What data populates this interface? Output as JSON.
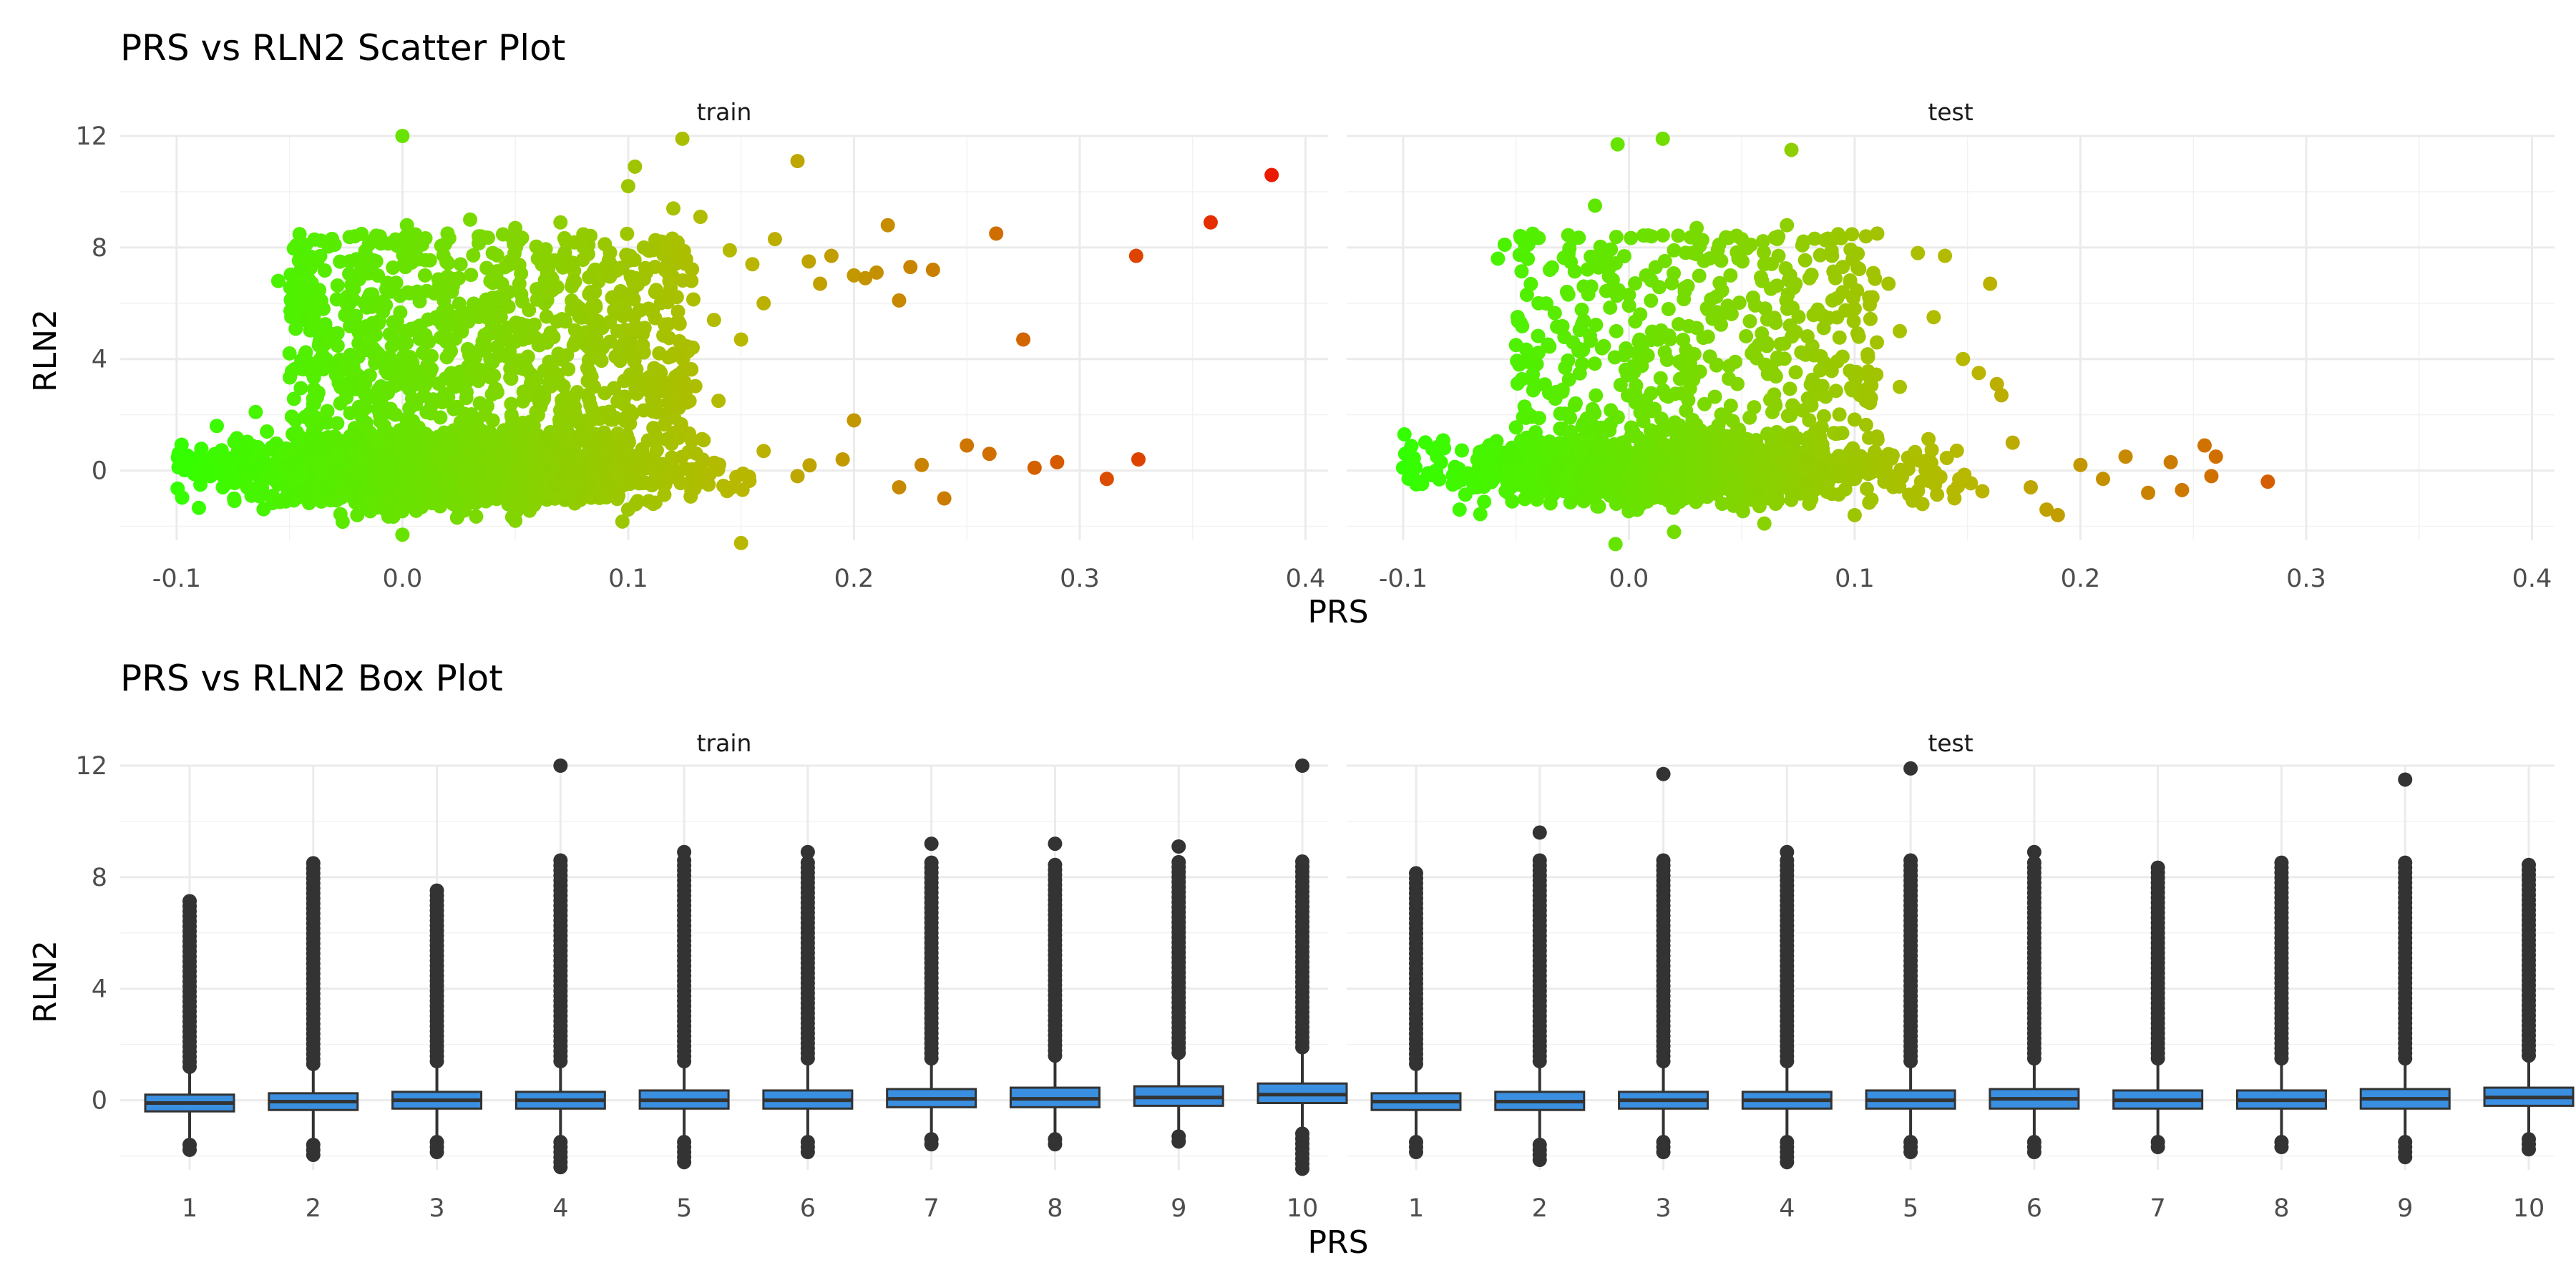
{
  "chart_data": [
    {
      "type": "scatter",
      "title": "PRS vs RLN2 Scatter Plot",
      "xlabel": "PRS",
      "ylabel": "RLN2",
      "facets": [
        "train",
        "test"
      ],
      "xlim": [
        -0.1,
        0.4
      ],
      "ylim": [
        -2.5,
        12
      ],
      "x_ticks": [
        "-0.1",
        "0.0",
        "0.1",
        "0.2",
        "0.3",
        "0.4"
      ],
      "y_ticks": [
        "0",
        "4",
        "8",
        "12"
      ],
      "color_scale": {
        "low": "#33ff00",
        "mid": "#b8b800",
        "high": "#ee1100",
        "range": [
          -0.1,
          0.4
        ]
      },
      "grid": true,
      "series": [
        {
          "facet": "train",
          "points": [
            [
              -0.097,
              0.1
            ],
            [
              -0.09,
              0.3
            ],
            [
              -0.085,
              -0.2
            ],
            [
              -0.08,
              0.5
            ],
            [
              -0.07,
              0.2
            ],
            [
              -0.065,
              2.1
            ],
            [
              -0.06,
              1.4
            ],
            [
              -0.055,
              6.8
            ],
            [
              -0.05,
              4.2
            ],
            [
              -0.045,
              7.2
            ],
            [
              -0.04,
              3.5
            ],
            [
              -0.035,
              5.8
            ],
            [
              -0.03,
              8.1
            ],
            [
              -0.025,
              2.8
            ],
            [
              -0.02,
              7.5
            ],
            [
              -0.015,
              6.2
            ],
            [
              -0.01,
              8.4
            ],
            [
              -0.005,
              4.9
            ],
            [
              0.0,
              12.0
            ],
            [
              0.002,
              8.8
            ],
            [
              0.005,
              3.1
            ],
            [
              0.01,
              7.0
            ],
            [
              0.015,
              5.5
            ],
            [
              0.02,
              8.5
            ],
            [
              0.025,
              6.9
            ],
            [
              0.03,
              9.0
            ],
            [
              0.035,
              4.4
            ],
            [
              0.04,
              7.8
            ],
            [
              0.045,
              6.1
            ],
            [
              0.05,
              8.7
            ],
            [
              0.055,
              5.2
            ],
            [
              0.06,
              7.6
            ],
            [
              0.065,
              3.9
            ],
            [
              0.07,
              8.9
            ],
            [
              0.075,
              6.6
            ],
            [
              0.08,
              8.2
            ],
            [
              0.085,
              4.6
            ],
            [
              0.09,
              7.3
            ],
            [
              0.095,
              5.9
            ],
            [
              0.1,
              10.2
            ],
            [
              0.103,
              10.9
            ],
            [
              0.108,
              7.1
            ],
            [
              0.112,
              6.4
            ],
            [
              0.116,
              8.0
            ],
            [
              0.12,
              9.4
            ],
            [
              0.124,
              11.9
            ],
            [
              0.128,
              6.8
            ],
            [
              0.132,
              9.1
            ],
            [
              0.138,
              5.4
            ],
            [
              0.145,
              7.9
            ],
            [
              0.15,
              4.7
            ],
            [
              0.155,
              7.4
            ],
            [
              0.16,
              6.0
            ],
            [
              0.165,
              8.3
            ],
            [
              0.175,
              11.1
            ],
            [
              0.18,
              7.5
            ],
            [
              0.185,
              6.7
            ],
            [
              0.19,
              7.7
            ],
            [
              0.2,
              7.0
            ],
            [
              0.205,
              6.9
            ],
            [
              0.21,
              7.1
            ],
            [
              0.215,
              8.8
            ],
            [
              0.22,
              6.1
            ],
            [
              0.225,
              7.3
            ],
            [
              0.235,
              7.2
            ],
            [
              0.263,
              8.5
            ],
            [
              0.275,
              4.7
            ],
            [
              0.325,
              7.7
            ],
            [
              0.358,
              8.9
            ],
            [
              0.385,
              10.6
            ],
            [
              -0.02,
              -1.6
            ],
            [
              0.0,
              -2.3
            ],
            [
              0.15,
              -2.6
            ],
            [
              0.05,
              -1.8
            ],
            [
              0.1,
              -1.4
            ],
            [
              0.12,
              1.9
            ],
            [
              0.14,
              2.5
            ],
            [
              0.2,
              1.8
            ],
            [
              0.23,
              0.2
            ],
            [
              0.26,
              0.6
            ],
            [
              0.28,
              0.1
            ],
            [
              0.29,
              0.3
            ],
            [
              0.312,
              -0.3
            ],
            [
              0.326,
              0.4
            ],
            [
              0.24,
              -1.0
            ],
            [
              0.25,
              0.9
            ],
            [
              0.22,
              -0.6
            ],
            [
              0.195,
              0.4
            ],
            [
              0.175,
              -0.2
            ],
            [
              0.16,
              0.7
            ]
          ]
        },
        {
          "facet": "test",
          "points": [
            [
              -0.1,
              0.1
            ],
            [
              -0.092,
              -0.4
            ],
            [
              -0.085,
              0.5
            ],
            [
              -0.075,
              -1.4
            ],
            [
              -0.06,
              0.7
            ],
            [
              -0.058,
              7.6
            ],
            [
              -0.055,
              8.1
            ],
            [
              -0.05,
              4.5
            ],
            [
              -0.045,
              3.9
            ],
            [
              -0.04,
              6.0
            ],
            [
              -0.035,
              7.2
            ],
            [
              -0.03,
              5.1
            ],
            [
              -0.025,
              8.3
            ],
            [
              -0.02,
              6.6
            ],
            [
              -0.015,
              9.5
            ],
            [
              -0.01,
              7.7
            ],
            [
              -0.005,
              11.7
            ],
            [
              0.0,
              6.3
            ],
            [
              0.005,
              5.6
            ],
            [
              0.01,
              8.4
            ],
            [
              0.015,
              11.9
            ],
            [
              0.02,
              7.9
            ],
            [
              0.025,
              6.5
            ],
            [
              0.03,
              8.7
            ],
            [
              0.035,
              4.8
            ],
            [
              0.04,
              8.1
            ],
            [
              0.045,
              7.0
            ],
            [
              0.05,
              8.3
            ],
            [
              0.055,
              6.2
            ],
            [
              0.06,
              7.4
            ],
            [
              0.065,
              5.3
            ],
            [
              0.07,
              8.8
            ],
            [
              0.072,
              11.5
            ],
            [
              0.08,
              6.9
            ],
            [
              0.085,
              4.1
            ],
            [
              0.09,
              7.7
            ],
            [
              0.1,
              5.8
            ],
            [
              0.105,
              8.4
            ],
            [
              0.11,
              8.5
            ],
            [
              0.115,
              6.7
            ],
            [
              0.12,
              5.0
            ],
            [
              0.128,
              7.8
            ],
            [
              0.135,
              5.5
            ],
            [
              0.14,
              7.7
            ],
            [
              0.148,
              4.0
            ],
            [
              0.155,
              3.5
            ],
            [
              0.16,
              6.7
            ],
            [
              0.163,
              3.1
            ],
            [
              0.165,
              2.7
            ],
            [
              0.17,
              1.0
            ],
            [
              0.178,
              -0.6
            ],
            [
              0.185,
              -1.4
            ],
            [
              0.19,
              -1.6
            ],
            [
              0.2,
              0.2
            ],
            [
              0.21,
              -0.3
            ],
            [
              0.22,
              0.5
            ],
            [
              0.23,
              -0.8
            ],
            [
              0.24,
              0.3
            ],
            [
              0.245,
              -0.7
            ],
            [
              0.255,
              0.9
            ],
            [
              0.258,
              -0.2
            ],
            [
              0.26,
              0.5
            ],
            [
              0.283,
              -0.4
            ],
            [
              0.02,
              -2.2
            ],
            [
              0.06,
              -1.9
            ],
            [
              0.1,
              -1.6
            ],
            [
              0.0,
              -1.3
            ],
            [
              -0.02,
              -1.1
            ],
            [
              0.13,
              -1.2
            ],
            [
              0.08,
              2.4
            ],
            [
              0.12,
              3.0
            ]
          ]
        }
      ]
    },
    {
      "type": "box",
      "title": "PRS vs RLN2 Box Plot",
      "xlabel": "PRS",
      "ylabel": "RLN2",
      "facets": [
        "train",
        "test"
      ],
      "categories": [
        "1",
        "2",
        "3",
        "4",
        "5",
        "6",
        "7",
        "8",
        "9",
        "10"
      ],
      "ylim": [
        -2.5,
        12
      ],
      "y_ticks": [
        "0",
        "4",
        "8",
        "12"
      ],
      "box_color": "#3a8fe0",
      "grid": true,
      "series": [
        {
          "facet": "train",
          "boxes": [
            {
              "q1": -0.4,
              "median": -0.1,
              "q3": 0.2,
              "whisker_low": -1.4,
              "whisker_high": 1.0,
              "outlier_low": -1.9,
              "outlier_high": 7.3
            },
            {
              "q1": -0.35,
              "median": -0.05,
              "q3": 0.25,
              "whisker_low": -1.4,
              "whisker_high": 1.1,
              "outlier_low": -2.0,
              "outlier_high": 8.6
            },
            {
              "q1": -0.3,
              "median": 0.0,
              "q3": 0.3,
              "whisker_low": -1.3,
              "whisker_high": 1.2,
              "outlier_low": -1.9,
              "outlier_high": 7.6
            },
            {
              "q1": -0.3,
              "median": 0.0,
              "q3": 0.3,
              "whisker_low": -1.3,
              "whisker_high": 1.2,
              "outlier_low": -2.5,
              "outlier_high": 12.0
            },
            {
              "q1": -0.3,
              "median": 0.0,
              "q3": 0.35,
              "whisker_low": -1.3,
              "whisker_high": 1.2,
              "outlier_low": -2.3,
              "outlier_high": 8.9
            },
            {
              "q1": -0.3,
              "median": 0.0,
              "q3": 0.35,
              "whisker_low": -1.3,
              "whisker_high": 1.3,
              "outlier_low": -1.9,
              "outlier_high": 8.9
            },
            {
              "q1": -0.25,
              "median": 0.05,
              "q3": 0.4,
              "whisker_low": -1.2,
              "whisker_high": 1.3,
              "outlier_low": -1.7,
              "outlier_high": 9.2
            },
            {
              "q1": -0.25,
              "median": 0.05,
              "q3": 0.45,
              "whisker_low": -1.2,
              "whisker_high": 1.4,
              "outlier_low": -1.7,
              "outlier_high": 9.2
            },
            {
              "q1": -0.2,
              "median": 0.1,
              "q3": 0.5,
              "whisker_low": -1.1,
              "whisker_high": 1.5,
              "outlier_low": -1.6,
              "outlier_high": 9.1
            },
            {
              "q1": -0.1,
              "median": 0.2,
              "q3": 0.6,
              "whisker_low": -1.0,
              "whisker_high": 1.7,
              "outlier_low": -2.5,
              "outlier_high": 12.0
            }
          ]
        },
        {
          "facet": "test",
          "boxes": [
            {
              "q1": -0.35,
              "median": -0.05,
              "q3": 0.25,
              "whisker_low": -1.3,
              "whisker_high": 1.1,
              "outlier_low": -1.9,
              "outlier_high": 8.3
            },
            {
              "q1": -0.35,
              "median": -0.05,
              "q3": 0.3,
              "whisker_low": -1.4,
              "whisker_high": 1.2,
              "outlier_low": -2.3,
              "outlier_high": 9.6
            },
            {
              "q1": -0.3,
              "median": 0.0,
              "q3": 0.3,
              "whisker_low": -1.3,
              "whisker_high": 1.2,
              "outlier_low": -1.9,
              "outlier_high": 11.7
            },
            {
              "q1": -0.3,
              "median": 0.0,
              "q3": 0.3,
              "whisker_low": -1.3,
              "whisker_high": 1.2,
              "outlier_low": -2.3,
              "outlier_high": 8.9
            },
            {
              "q1": -0.3,
              "median": 0.0,
              "q3": 0.35,
              "whisker_low": -1.3,
              "whisker_high": 1.2,
              "outlier_low": -2.0,
              "outlier_high": 11.9
            },
            {
              "q1": -0.3,
              "median": 0.05,
              "q3": 0.4,
              "whisker_low": -1.3,
              "whisker_high": 1.3,
              "outlier_low": -1.9,
              "outlier_high": 8.9
            },
            {
              "q1": -0.3,
              "median": 0.0,
              "q3": 0.35,
              "whisker_low": -1.3,
              "whisker_high": 1.3,
              "outlier_low": -1.8,
              "outlier_high": 8.5
            },
            {
              "q1": -0.3,
              "median": 0.0,
              "q3": 0.35,
              "whisker_low": -1.3,
              "whisker_high": 1.3,
              "outlier_low": -1.7,
              "outlier_high": 8.6
            },
            {
              "q1": -0.3,
              "median": 0.05,
              "q3": 0.4,
              "whisker_low": -1.3,
              "whisker_high": 1.3,
              "outlier_low": -2.1,
              "outlier_high": 11.5
            },
            {
              "q1": -0.2,
              "median": 0.1,
              "q3": 0.45,
              "whisker_low": -1.2,
              "whisker_high": 1.4,
              "outlier_low": -1.8,
              "outlier_high": 8.5
            }
          ]
        }
      ]
    }
  ]
}
